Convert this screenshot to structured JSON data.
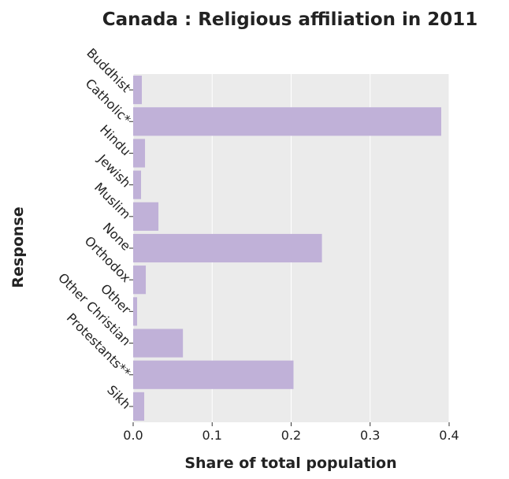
{
  "chart_data": {
    "type": "bar",
    "orientation": "horizontal",
    "title": "Canada : Religious affiliation in 2011",
    "xlabel": "Share of total population",
    "ylabel": "Response",
    "categories": [
      "Buddhist",
      "Catholic*",
      "Hindu",
      "Jewish",
      "Muslim",
      "None",
      "Orthodox",
      "Other",
      "Other Christian",
      "Protestants**",
      "Sikh"
    ],
    "values": [
      0.011,
      0.39,
      0.015,
      0.01,
      0.032,
      0.239,
      0.016,
      0.005,
      0.063,
      0.203,
      0.014
    ],
    "xlim": [
      0,
      0.4
    ],
    "xticks": [
      0,
      0.1,
      0.2,
      0.3,
      0.4
    ],
    "xtick_labels": [
      "0.0",
      "0.1",
      "0.2",
      "0.3",
      "0.4"
    ],
    "grid": "vertical",
    "colors": {
      "bar": "#c0b1d8",
      "panel": "#ebebeb",
      "gridline": "#ffffff",
      "text": "#222222"
    }
  }
}
